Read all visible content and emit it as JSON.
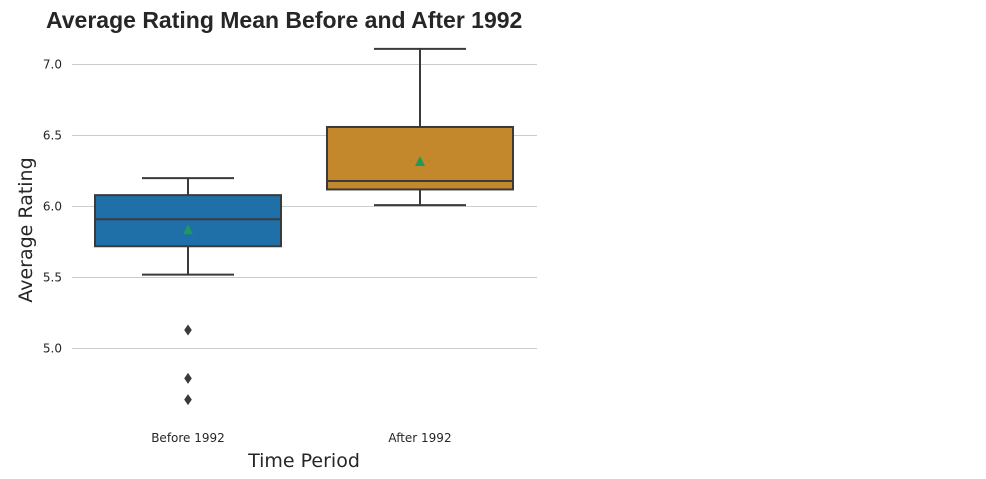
{
  "chart_data": {
    "type": "box",
    "title": "Average Rating Mean Before and After 1992",
    "xlabel": "Time Period",
    "ylabel": "Average Rating",
    "ylim": [
      4.5,
      7.2
    ],
    "y_ticks": [
      5.0,
      5.5,
      6.0,
      6.5,
      7.0
    ],
    "y_tick_labels": [
      "5.0",
      "5.5",
      "6.0",
      "6.5",
      "7.0"
    ],
    "grid": "horizontal",
    "categories": [
      "Before 1992",
      "After 1992"
    ],
    "boxes": [
      {
        "category": "Before 1992",
        "whisker_low": 5.52,
        "q1": 5.72,
        "median": 5.91,
        "q3": 6.08,
        "whisker_high": 6.2,
        "mean": 5.84,
        "outliers": [
          5.13,
          4.79,
          4.64
        ],
        "color": "#1f6fa8"
      },
      {
        "category": "After 1992",
        "whisker_low": 6.01,
        "q1": 6.12,
        "median": 6.18,
        "q3": 6.56,
        "whisker_high": 7.11,
        "mean": 6.32,
        "outliers": [],
        "color": "#c3872c"
      }
    ],
    "colors": {
      "line": "#3a3a3a",
      "grid": "#cccccc",
      "mean_marker": "#1f9a5a"
    }
  }
}
